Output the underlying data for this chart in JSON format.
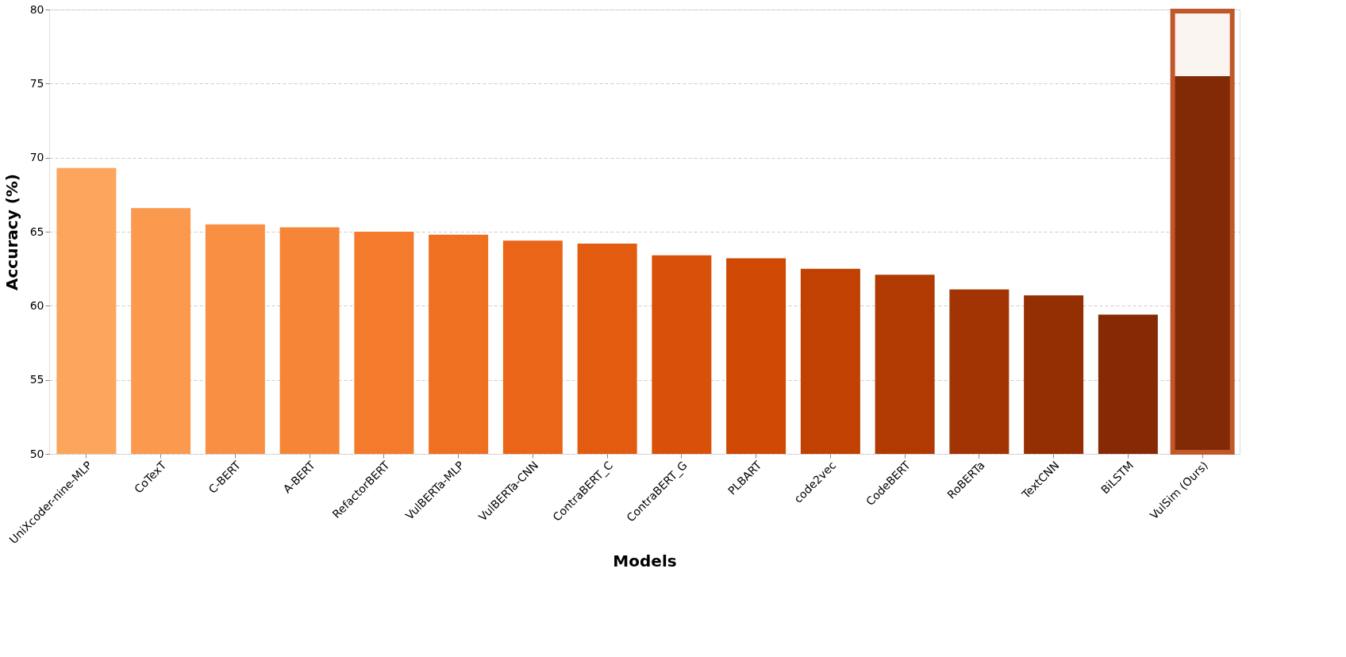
{
  "chart_data": {
    "type": "bar",
    "xlabel": "Models",
    "ylabel": "Accuracy (%)",
    "categories": [
      "UniXcoder-nine-MLP",
      "CoTexT",
      "C-BERT",
      "A-BERT",
      "RefactorBERT",
      "VulBERTa-MLP",
      "VulBERTa-CNN",
      "ContraBERT_C",
      "ContraBERT_G",
      "PLBART",
      "code2vec",
      "CodeBERT",
      "RoBERTa",
      "TextCNN",
      "BiLSTM",
      "VulSim (Ours)"
    ],
    "values": [
      69.3,
      66.6,
      65.5,
      65.3,
      65.0,
      64.8,
      64.4,
      64.2,
      63.4,
      63.2,
      62.5,
      62.1,
      61.1,
      60.7,
      59.4,
      75.5
    ],
    "colors": [
      "#fca55d",
      "#fb9a4f",
      "#f98f43",
      "#f78538",
      "#f47b2c",
      "#f07022",
      "#ea6518",
      "#e35b0f",
      "#d95108",
      "#cf4804",
      "#c04102",
      "#b03a02",
      "#a23403",
      "#942f04",
      "#852a04",
      "#7f2704"
    ],
    "ylim": [
      50,
      80
    ],
    "yticks": [
      50,
      55,
      60,
      65,
      70,
      75,
      80
    ],
    "grid": "y",
    "bands": [
      {
        "axis": "x",
        "from": "VulSim (Ours)",
        "to": "VulSim (Ours)",
        "color": "#c0582a"
      }
    ]
  }
}
